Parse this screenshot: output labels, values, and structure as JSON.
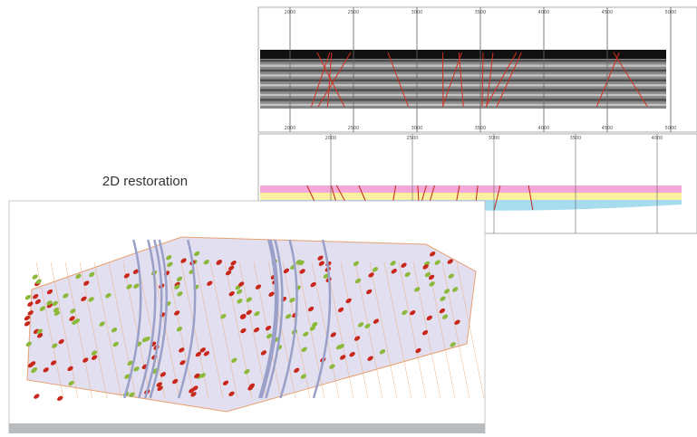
{
  "caption": "2D restoration",
  "seismic_panel": {
    "top_axis": [
      2000,
      2500,
      3000,
      3500,
      4000,
      4500,
      5000
    ],
    "bottom_axis": [
      2000,
      2500,
      3000,
      3500,
      4000,
      4500,
      5000
    ]
  },
  "restored_panel": {
    "top_axis": [
      2000,
      2500,
      3000,
      3500,
      4000
    ]
  }
}
